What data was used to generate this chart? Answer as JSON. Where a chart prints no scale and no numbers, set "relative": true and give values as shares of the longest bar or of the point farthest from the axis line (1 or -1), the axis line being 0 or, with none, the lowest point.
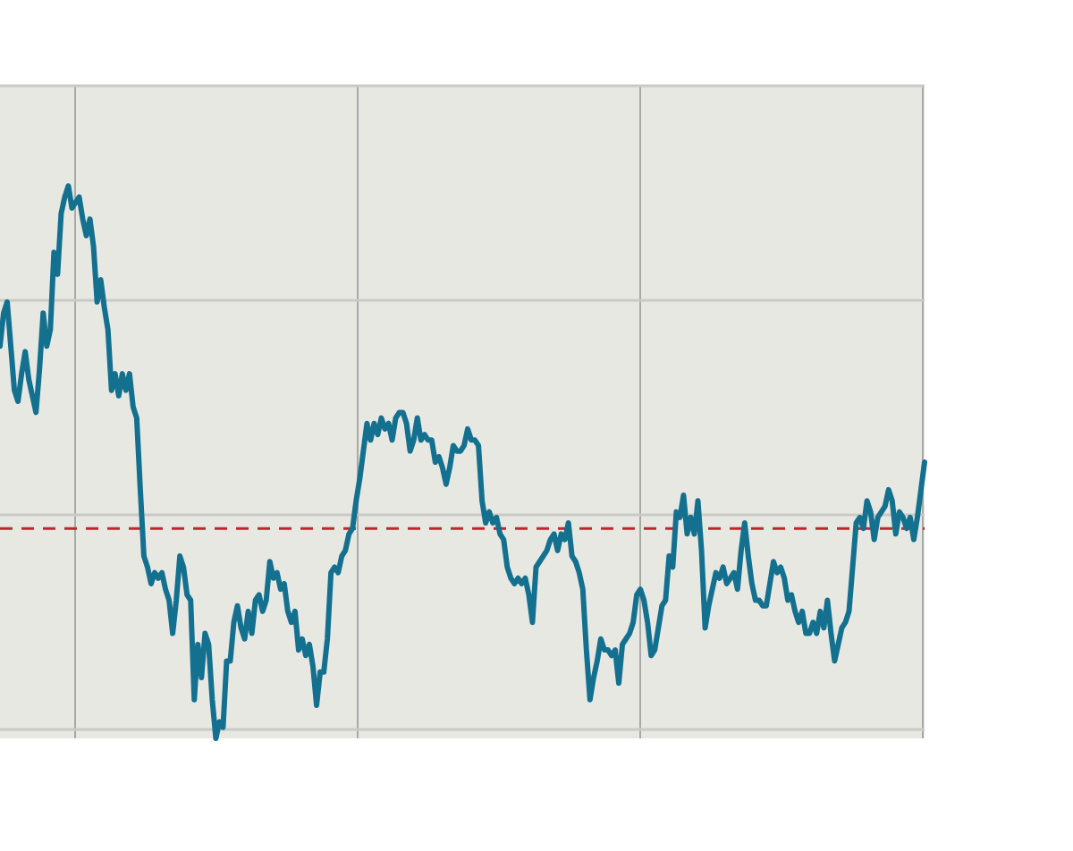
{
  "chart_data": {
    "type": "line",
    "relative": true,
    "grid": true,
    "line_style": "solid",
    "categories": [
      null,
      null,
      null,
      null,
      null,
      null,
      null,
      null,
      null,
      null,
      null,
      null,
      null,
      null,
      null,
      null,
      null,
      null,
      null,
      null,
      null,
      null,
      null,
      null,
      null,
      null,
      null,
      null,
      null,
      null,
      null,
      null,
      null,
      null,
      null,
      null,
      null,
      null,
      null,
      null,
      null,
      null,
      null,
      null,
      null,
      null,
      null,
      null,
      null,
      null,
      null,
      null,
      null,
      null,
      null,
      null,
      null,
      null,
      null,
      null,
      null,
      null,
      null,
      null,
      null,
      null,
      null,
      null,
      null,
      null,
      null,
      null,
      null,
      null,
      null,
      null,
      null,
      null,
      null,
      null,
      null,
      null,
      null,
      null,
      null,
      null,
      null,
      null,
      null,
      null,
      null,
      null,
      null,
      null,
      null,
      null,
      null,
      null,
      null,
      null,
      null,
      null,
      null,
      null,
      null,
      null,
      null,
      null,
      null,
      null,
      null,
      null,
      null,
      null,
      null,
      null,
      null,
      null,
      null,
      null,
      null,
      null,
      null,
      null,
      null,
      null,
      null,
      null,
      null,
      null,
      null,
      null,
      null,
      null,
      null,
      null,
      null,
      null,
      null,
      null,
      null,
      null,
      null,
      null,
      null,
      null,
      null,
      null,
      null,
      null,
      null,
      null,
      null,
      null,
      null,
      null,
      null,
      null,
      null,
      null,
      null,
      null,
      null,
      null,
      null,
      null,
      null,
      null,
      null,
      null,
      null,
      null,
      null,
      null,
      null,
      null,
      null,
      null,
      null,
      null,
      null,
      null,
      null,
      null,
      null,
      null,
      null,
      null,
      null,
      null,
      null,
      null,
      null,
      null,
      null,
      null,
      null,
      null,
      null,
      null,
      null,
      null,
      null,
      null,
      null,
      null,
      null,
      null,
      null,
      null,
      null,
      null,
      null,
      null,
      null,
      null,
      null,
      null,
      null,
      null,
      null,
      null,
      null,
      null,
      null,
      null,
      null,
      null,
      null,
      null,
      null,
      null,
      null,
      null,
      null,
      null,
      null,
      null,
      null,
      null,
      null,
      null,
      null,
      null,
      null,
      null,
      null,
      null,
      null,
      null,
      null,
      null,
      null,
      null,
      null,
      null,
      null,
      null
    ],
    "series": [
      {
        "color": "#13708f",
        "values": [
          0.71,
          0.77,
          0.79,
          0.71,
          0.63,
          0.61,
          0.66,
          0.7,
          0.65,
          0.62,
          0.59,
          0.67,
          0.77,
          0.71,
          0.74,
          0.88,
          0.84,
          0.95,
          0.98,
          1,
          0.96,
          0.97,
          0.98,
          0.94,
          0.91,
          0.94,
          0.89,
          0.79,
          0.83,
          0.78,
          0.74,
          0.63,
          0.66,
          0.62,
          0.66,
          0.63,
          0.66,
          0.6,
          0.58,
          0.45,
          0.33,
          0.31,
          0.28,
          0.3,
          0.29,
          0.3,
          0.27,
          0.25,
          0.19,
          0.25,
          0.33,
          0.31,
          0.26,
          0.25,
          0.07,
          0.17,
          0.11,
          0.19,
          0.17,
          0.07,
          0,
          0.03,
          0.02,
          0.14,
          0.14,
          0.21,
          0.24,
          0.2,
          0.18,
          0.23,
          0.19,
          0.25,
          0.26,
          0.23,
          0.25,
          0.32,
          0.29,
          0.3,
          0.27,
          0.28,
          0.23,
          0.21,
          0.23,
          0.16,
          0.18,
          0.15,
          0.17,
          0.13,
          0.06,
          0.12,
          0.12,
          0.18,
          0.3,
          0.31,
          0.3,
          0.33,
          0.34,
          0.37,
          0.38,
          0.43,
          0.47,
          0.52,
          0.57,
          0.54,
          0.57,
          0.55,
          0.58,
          0.56,
          0.57,
          0.54,
          0.58,
          0.59,
          0.59,
          0.57,
          0.52,
          0.54,
          0.58,
          0.54,
          0.55,
          0.54,
          0.54,
          0.5,
          0.51,
          0.49,
          0.46,
          0.49,
          0.53,
          0.52,
          0.52,
          0.53,
          0.56,
          0.54,
          0.54,
          0.53,
          0.43,
          0.39,
          0.41,
          0.39,
          0.4,
          0.37,
          0.36,
          0.31,
          0.29,
          0.28,
          0.29,
          0.28,
          0.29,
          0.26,
          0.21,
          0.31,
          0.32,
          0.33,
          0.34,
          0.36,
          0.37,
          0.34,
          0.37,
          0.36,
          0.39,
          0.33,
          0.32,
          0.3,
          0.27,
          0.16,
          0.07,
          0.11,
          0.14,
          0.18,
          0.16,
          0.16,
          0.15,
          0.16,
          0.1,
          0.17,
          0.18,
          0.19,
          0.21,
          0.26,
          0.27,
          0.25,
          0.21,
          0.15,
          0.16,
          0.2,
          0.24,
          0.25,
          0.33,
          0.31,
          0.41,
          0.4,
          0.44,
          0.37,
          0.4,
          0.37,
          0.43,
          0.34,
          0.2,
          0.24,
          0.27,
          0.3,
          0.29,
          0.31,
          0.28,
          0.29,
          0.3,
          0.27,
          0.34,
          0.39,
          0.33,
          0.28,
          0.25,
          0.25,
          0.24,
          0.24,
          0.28,
          0.32,
          0.3,
          0.31,
          0.29,
          0.25,
          0.26,
          0.23,
          0.21,
          0.23,
          0.19,
          0.19,
          0.21,
          0.19,
          0.23,
          0.2,
          0.25,
          0.19,
          0.14,
          0.17,
          0.2,
          0.21,
          0.23,
          0.31,
          0.39,
          0.4,
          0.38,
          0.43,
          0.41,
          0.36,
          0.4,
          0.41,
          0.42,
          0.45,
          0.43,
          0.37,
          0.41,
          0.4,
          0.38,
          0.4,
          0.36,
          0.4,
          0.45,
          0.5
        ]
      }
    ],
    "ref_lines": [
      {
        "axis": "y",
        "value": 0.38,
        "color": "#c0272d",
        "line_style": "dashed"
      }
    ]
  }
}
